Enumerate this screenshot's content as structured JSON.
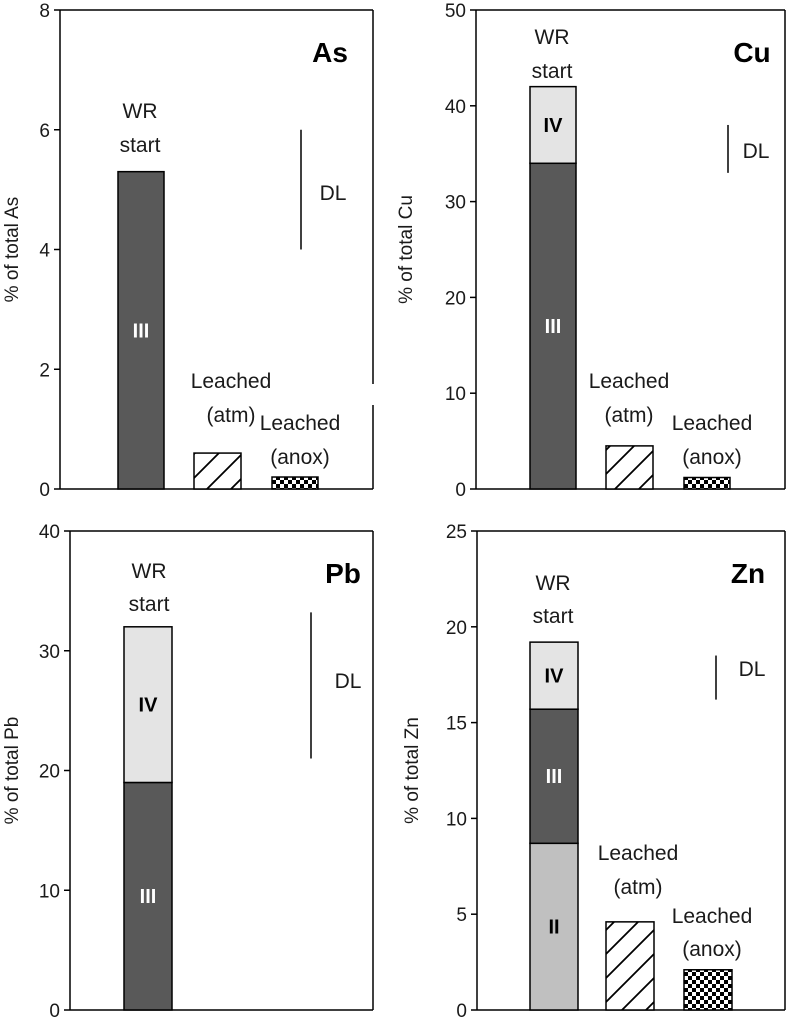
{
  "chart_data": [
    {
      "type": "bar",
      "title": "As",
      "ylabel": "% of total As",
      "ylim": [
        0,
        8
      ],
      "yticks": [
        0,
        2,
        4,
        6,
        8
      ],
      "dl_label": "DL",
      "dl_range": [
        4,
        6
      ],
      "bars": [
        {
          "label_lines": [
            "WR",
            "start"
          ],
          "segments": [
            {
              "name": "III",
              "from": 0,
              "to": 5.3,
              "fill": "dark"
            }
          ]
        },
        {
          "label_lines": [
            "Leached",
            "(atm)"
          ],
          "segments": [
            {
              "name": "",
              "from": 0,
              "to": 0.6,
              "fill": "hatch"
            }
          ]
        },
        {
          "label_lines": [
            "Leached",
            "(anox)"
          ],
          "segments": [
            {
              "name": "",
              "from": 0,
              "to": 0.2,
              "fill": "checker"
            }
          ]
        }
      ]
    },
    {
      "type": "bar",
      "title": "Cu",
      "ylabel": "% of total Cu",
      "ylim": [
        0,
        50
      ],
      "yticks": [
        0,
        10,
        20,
        30,
        40,
        50
      ],
      "dl_label": "DL",
      "dl_range": [
        33,
        38
      ],
      "bars": [
        {
          "label_lines": [
            "WR",
            "start"
          ],
          "segments": [
            {
              "name": "III",
              "from": 0,
              "to": 34,
              "fill": "dark"
            },
            {
              "name": "IV",
              "from": 34,
              "to": 42,
              "fill": "light"
            }
          ]
        },
        {
          "label_lines": [
            "Leached",
            "(atm)"
          ],
          "segments": [
            {
              "name": "",
              "from": 0,
              "to": 4.5,
              "fill": "hatch"
            }
          ]
        },
        {
          "label_lines": [
            "Leached",
            "(anox)"
          ],
          "segments": [
            {
              "name": "",
              "from": 0,
              "to": 1.2,
              "fill": "checker"
            }
          ]
        }
      ]
    },
    {
      "type": "bar",
      "title": "Pb",
      "ylabel": "% of total Pb",
      "ylim": [
        0,
        40
      ],
      "yticks": [
        0,
        10,
        20,
        30,
        40
      ],
      "dl_label": "DL",
      "dl_range": [
        21,
        33.2
      ],
      "bars": [
        {
          "label_lines": [
            "WR",
            "start"
          ],
          "segments": [
            {
              "name": "III",
              "from": 0,
              "to": 19,
              "fill": "dark"
            },
            {
              "name": "IV",
              "from": 19,
              "to": 32,
              "fill": "light"
            }
          ]
        }
      ]
    },
    {
      "type": "bar",
      "title": "Zn",
      "ylabel": "% of total Zn",
      "ylim": [
        0,
        25
      ],
      "yticks": [
        0,
        5,
        10,
        15,
        20,
        25
      ],
      "dl_label": "DL",
      "dl_range": [
        16.2,
        18.5
      ],
      "bars": [
        {
          "label_lines": [
            "WR",
            "start"
          ],
          "segments": [
            {
              "name": "II",
              "from": 0,
              "to": 8.7,
              "fill": "medium"
            },
            {
              "name": "III",
              "from": 8.7,
              "to": 15.7,
              "fill": "dark"
            },
            {
              "name": "IV",
              "from": 15.7,
              "to": 19.2,
              "fill": "light"
            }
          ]
        },
        {
          "label_lines": [
            "Leached",
            "(atm)"
          ],
          "segments": [
            {
              "name": "",
              "from": 0,
              "to": 4.6,
              "fill": "hatch"
            }
          ]
        },
        {
          "label_lines": [
            "Leached",
            "(anox)"
          ],
          "segments": [
            {
              "name": "",
              "from": 0,
              "to": 2.1,
              "fill": "checker"
            }
          ]
        }
      ]
    }
  ]
}
